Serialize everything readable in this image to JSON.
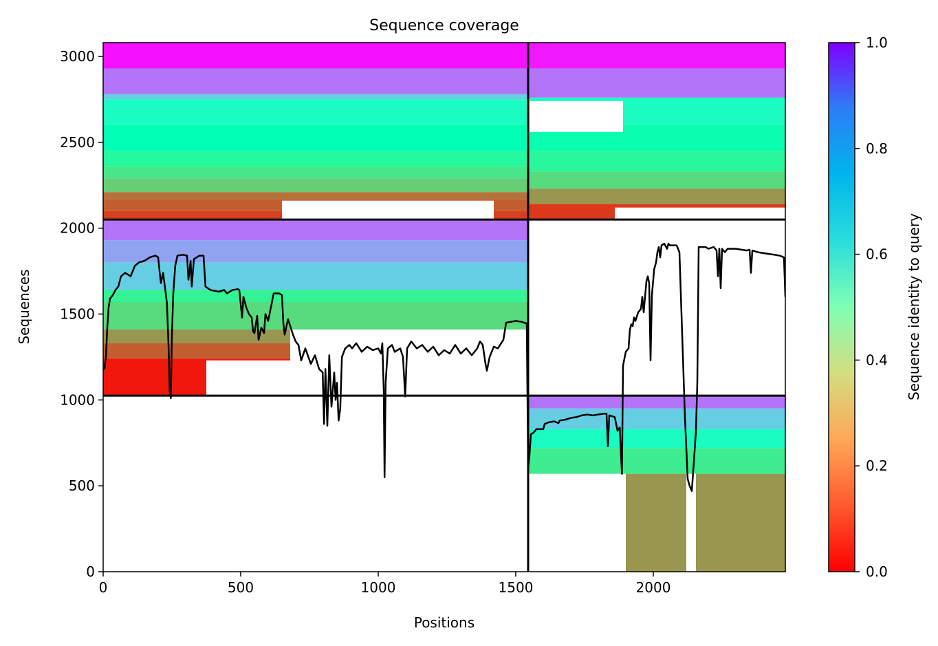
{
  "chart_data": {
    "type": "heatmap",
    "title": "Sequence coverage",
    "xlabel": "Positions",
    "ylabel": "Sequences",
    "xlim": [
      0,
      2480
    ],
    "ylim": [
      0,
      3080
    ],
    "xticks": [
      0,
      500,
      1000,
      1500,
      2000
    ],
    "yticks": [
      0,
      500,
      1000,
      1500,
      2000,
      2500,
      3000
    ],
    "grid": false,
    "colormap": "rainbow_r",
    "colorbar": {
      "label": "Sequence identity to query",
      "range": [
        0.0,
        1.0
      ],
      "ticks": [
        0.0,
        0.2,
        0.4,
        0.6,
        0.8,
        1.0
      ],
      "tick_labels": [
        "0.0",
        "0.2",
        "0.4",
        "0.6",
        "0.8",
        "1.0"
      ]
    },
    "chain_boundaries": {
      "x": [
        1545
      ],
      "y": [
        1025,
        2050
      ]
    },
    "blocks": [
      {
        "name": "chain1-paired",
        "x_range": [
          0,
          1545
        ],
        "y_range": [
          2050,
          3080
        ],
        "bands": [
          {
            "y_from": 2930,
            "y_to": 3080,
            "identity": 0.98
          },
          {
            "y_from": 2780,
            "y_to": 2930,
            "identity": 0.85
          },
          {
            "y_from": 2750,
            "y_to": 2780,
            "identity": 0.7
          },
          {
            "y_from": 2600,
            "y_to": 2750,
            "identity": 0.55
          },
          {
            "y_from": 2450,
            "y_to": 2600,
            "identity": 0.5
          },
          {
            "y_from": 2360,
            "y_to": 2450,
            "identity": 0.43
          },
          {
            "y_from": 2290,
            "y_to": 2360,
            "identity": 0.36
          },
          {
            "y_from": 2210,
            "y_to": 2290,
            "identity": 0.3
          },
          {
            "y_from": 2170,
            "y_to": 2210,
            "identity": 0.15
          },
          {
            "y_from": 2100,
            "y_to": 2170,
            "identity": 0.12
          },
          {
            "y_from": 2050,
            "y_to": 2100,
            "identity": 0.08
          }
        ],
        "gaps": [
          {
            "x_from": 650,
            "x_to": 1420,
            "y_from": 2050,
            "y_to": 2160
          }
        ]
      },
      {
        "name": "chain2-paired",
        "x_range": [
          1545,
          2480
        ],
        "y_range": [
          2050,
          3080
        ],
        "bands": [
          {
            "y_from": 2930,
            "y_to": 3080,
            "identity": 0.97
          },
          {
            "y_from": 2760,
            "y_to": 2930,
            "identity": 0.85
          },
          {
            "y_from": 2600,
            "y_to": 2760,
            "identity": 0.55
          },
          {
            "y_from": 2450,
            "y_to": 2600,
            "identity": 0.48
          },
          {
            "y_from": 2330,
            "y_to": 2450,
            "identity": 0.42
          },
          {
            "y_from": 2230,
            "y_to": 2330,
            "identity": 0.33
          },
          {
            "y_from": 2140,
            "y_to": 2230,
            "identity": 0.2
          },
          {
            "y_from": 2050,
            "y_to": 2140,
            "identity": 0.07
          }
        ],
        "gaps": [
          {
            "x_from": 1550,
            "x_to": 1890,
            "y_from": 2560,
            "y_to": 2740
          },
          {
            "x_from": 1860,
            "x_to": 2480,
            "y_from": 2050,
            "y_to": 2120
          }
        ]
      },
      {
        "name": "chain1-unpaired",
        "x_range": [
          0,
          1545
        ],
        "y_range": [
          1025,
          2050
        ],
        "bands": [
          {
            "y_from": 1930,
            "y_to": 2050,
            "identity": 0.85
          },
          {
            "y_from": 1800,
            "y_to": 1930,
            "identity": 0.78
          },
          {
            "y_from": 1640,
            "y_to": 1800,
            "identity": 0.7
          },
          {
            "y_from": 1570,
            "y_to": 1640,
            "identity": 0.4
          },
          {
            "y_from": 1410,
            "y_to": 1570,
            "identity": 0.33
          },
          {
            "y_from": 1330,
            "y_to": 1410,
            "identity": 0.2
          },
          {
            "y_from": 1240,
            "y_to": 1330,
            "identity": 0.12
          },
          {
            "y_from": 1025,
            "y_to": 1240,
            "identity": 0.03
          }
        ],
        "gaps": [
          {
            "x_from": 680,
            "x_to": 1545,
            "y_from": 1025,
            "y_to": 1410
          },
          {
            "x_from": 375,
            "x_to": 680,
            "y_from": 1025,
            "y_to": 1230
          }
        ]
      },
      {
        "name": "chain2-unpaired",
        "x_range": [
          1545,
          2480
        ],
        "y_range": [
          0,
          1025
        ],
        "bands": [
          {
            "y_from": 950,
            "y_to": 1025,
            "identity": 0.85
          },
          {
            "y_from": 830,
            "y_to": 950,
            "identity": 0.7
          },
          {
            "y_from": 720,
            "y_to": 830,
            "identity": 0.55
          },
          {
            "y_from": 570,
            "y_to": 720,
            "identity": 0.38
          },
          {
            "y_from": 0,
            "y_to": 570,
            "identity": 0.2
          }
        ],
        "gaps": [
          {
            "x_from": 1545,
            "x_to": 1900,
            "y_from": 0,
            "y_to": 570
          },
          {
            "x_from": 2120,
            "x_to": 2155,
            "y_from": 0,
            "y_to": 570
          }
        ]
      }
    ],
    "coverage_line": {
      "points": [
        [
          0,
          1175
        ],
        [
          5,
          1185
        ],
        [
          10,
          1250
        ],
        [
          15,
          1420
        ],
        [
          20,
          1540
        ],
        [
          25,
          1590
        ],
        [
          35,
          1610
        ],
        [
          45,
          1640
        ],
        [
          55,
          1660
        ],
        [
          65,
          1720
        ],
        [
          80,
          1740
        ],
        [
          100,
          1720
        ],
        [
          115,
          1780
        ],
        [
          130,
          1800
        ],
        [
          150,
          1810
        ],
        [
          170,
          1830
        ],
        [
          190,
          1840
        ],
        [
          200,
          1830
        ],
        [
          205,
          1750
        ],
        [
          210,
          1680
        ],
        [
          218,
          1740
        ],
        [
          226,
          1640
        ],
        [
          232,
          1560
        ],
        [
          238,
          1300
        ],
        [
          242,
          1050
        ],
        [
          246,
          1010
        ],
        [
          250,
          1380
        ],
        [
          255,
          1620
        ],
        [
          262,
          1780
        ],
        [
          270,
          1840
        ],
        [
          290,
          1845
        ],
        [
          305,
          1840
        ],
        [
          310,
          1700
        ],
        [
          313,
          1740
        ],
        [
          318,
          1810
        ],
        [
          322,
          1660
        ],
        [
          330,
          1820
        ],
        [
          350,
          1840
        ],
        [
          365,
          1840
        ],
        [
          372,
          1660
        ],
        [
          390,
          1640
        ],
        [
          420,
          1630
        ],
        [
          440,
          1640
        ],
        [
          450,
          1620
        ],
        [
          470,
          1640
        ],
        [
          490,
          1645
        ],
        [
          495,
          1640
        ],
        [
          505,
          1480
        ],
        [
          510,
          1600
        ],
        [
          520,
          1540
        ],
        [
          530,
          1500
        ],
        [
          540,
          1480
        ],
        [
          545,
          1400
        ],
        [
          550,
          1390
        ],
        [
          560,
          1490
        ],
        [
          565,
          1350
        ],
        [
          575,
          1420
        ],
        [
          585,
          1390
        ],
        [
          590,
          1500
        ],
        [
          600,
          1460
        ],
        [
          620,
          1620
        ],
        [
          640,
          1620
        ],
        [
          650,
          1610
        ],
        [
          655,
          1450
        ],
        [
          660,
          1380
        ],
        [
          672,
          1470
        ],
        [
          690,
          1380
        ],
        [
          700,
          1340
        ],
        [
          710,
          1320
        ],
        [
          720,
          1230
        ],
        [
          735,
          1300
        ],
        [
          755,
          1210
        ],
        [
          770,
          1260
        ],
        [
          785,
          1180
        ],
        [
          798,
          1160
        ],
        [
          803,
          860
        ],
        [
          808,
          1180
        ],
        [
          815,
          850
        ],
        [
          822,
          1260
        ],
        [
          830,
          960
        ],
        [
          840,
          1160
        ],
        [
          845,
          1000
        ],
        [
          850,
          1100
        ],
        [
          856,
          880
        ],
        [
          862,
          950
        ],
        [
          868,
          1250
        ],
        [
          880,
          1300
        ],
        [
          895,
          1320
        ],
        [
          905,
          1300
        ],
        [
          920,
          1330
        ],
        [
          940,
          1280
        ],
        [
          960,
          1310
        ],
        [
          980,
          1290
        ],
        [
          1000,
          1300
        ],
        [
          1010,
          1270
        ],
        [
          1015,
          1330
        ],
        [
          1020,
          1060
        ],
        [
          1023,
          550
        ],
        [
          1027,
          1100
        ],
        [
          1035,
          1300
        ],
        [
          1050,
          1320
        ],
        [
          1060,
          1280
        ],
        [
          1080,
          1300
        ],
        [
          1090,
          1250
        ],
        [
          1098,
          1020
        ],
        [
          1105,
          1300
        ],
        [
          1120,
          1340
        ],
        [
          1140,
          1300
        ],
        [
          1160,
          1320
        ],
        [
          1180,
          1280
        ],
        [
          1200,
          1310
        ],
        [
          1220,
          1260
        ],
        [
          1240,
          1290
        ],
        [
          1260,
          1270
        ],
        [
          1280,
          1320
        ],
        [
          1300,
          1270
        ],
        [
          1320,
          1300
        ],
        [
          1340,
          1260
        ],
        [
          1360,
          1300
        ],
        [
          1370,
          1340
        ],
        [
          1380,
          1320
        ],
        [
          1390,
          1210
        ],
        [
          1395,
          1170
        ],
        [
          1405,
          1250
        ],
        [
          1420,
          1310
        ],
        [
          1435,
          1300
        ],
        [
          1455,
          1350
        ],
        [
          1465,
          1450
        ],
        [
          1500,
          1460
        ],
        [
          1520,
          1455
        ],
        [
          1540,
          1445
        ],
        [
          1545,
          600
        ],
        [
          1550,
          680
        ],
        [
          1555,
          800
        ],
        [
          1565,
          810
        ],
        [
          1575,
          830
        ],
        [
          1600,
          830
        ],
        [
          1605,
          860
        ],
        [
          1620,
          870
        ],
        [
          1640,
          875
        ],
        [
          1655,
          865
        ],
        [
          1660,
          880
        ],
        [
          1680,
          885
        ],
        [
          1700,
          895
        ],
        [
          1720,
          900
        ],
        [
          1740,
          910
        ],
        [
          1760,
          915
        ],
        [
          1780,
          910
        ],
        [
          1800,
          915
        ],
        [
          1820,
          920
        ],
        [
          1830,
          920
        ],
        [
          1835,
          730
        ],
        [
          1840,
          910
        ],
        [
          1860,
          900
        ],
        [
          1870,
          820
        ],
        [
          1878,
          840
        ],
        [
          1882,
          700
        ],
        [
          1886,
          570
        ],
        [
          1890,
          1200
        ],
        [
          1900,
          1280
        ],
        [
          1905,
          1290
        ],
        [
          1910,
          1300
        ],
        [
          1915,
          1410
        ],
        [
          1920,
          1440
        ],
        [
          1925,
          1430
        ],
        [
          1930,
          1480
        ],
        [
          1935,
          1460
        ],
        [
          1945,
          1510
        ],
        [
          1955,
          1530
        ],
        [
          1960,
          1600
        ],
        [
          1965,
          1510
        ],
        [
          1975,
          1690
        ],
        [
          1980,
          1720
        ],
        [
          1985,
          1680
        ],
        [
          1990,
          1230
        ],
        [
          1995,
          1610
        ],
        [
          2003,
          1760
        ],
        [
          2010,
          1800
        ],
        [
          2015,
          1860
        ],
        [
          2020,
          1890
        ],
        [
          2025,
          1830
        ],
        [
          2030,
          1900
        ],
        [
          2040,
          1910
        ],
        [
          2050,
          1880
        ],
        [
          2055,
          1910
        ],
        [
          2060,
          1900
        ],
        [
          2085,
          1900
        ],
        [
          2095,
          1860
        ],
        [
          2105,
          1380
        ],
        [
          2115,
          900
        ],
        [
          2125,
          540
        ],
        [
          2132,
          500
        ],
        [
          2140,
          470
        ],
        [
          2148,
          650
        ],
        [
          2155,
          820
        ],
        [
          2160,
          1100
        ],
        [
          2165,
          1890
        ],
        [
          2190,
          1890
        ],
        [
          2200,
          1880
        ],
        [
          2220,
          1890
        ],
        [
          2230,
          1870
        ],
        [
          2235,
          1720
        ],
        [
          2240,
          1880
        ],
        [
          2245,
          1650
        ],
        [
          2250,
          1880
        ],
        [
          2260,
          1860
        ],
        [
          2270,
          1880
        ],
        [
          2300,
          1880
        ],
        [
          2320,
          1875
        ],
        [
          2340,
          1870
        ],
        [
          2350,
          1875
        ],
        [
          2355,
          1740
        ],
        [
          2360,
          1870
        ],
        [
          2380,
          1860
        ],
        [
          2400,
          1855
        ],
        [
          2420,
          1850
        ],
        [
          2440,
          1845
        ],
        [
          2460,
          1840
        ],
        [
          2475,
          1830
        ],
        [
          2480,
          1600
        ]
      ]
    }
  }
}
